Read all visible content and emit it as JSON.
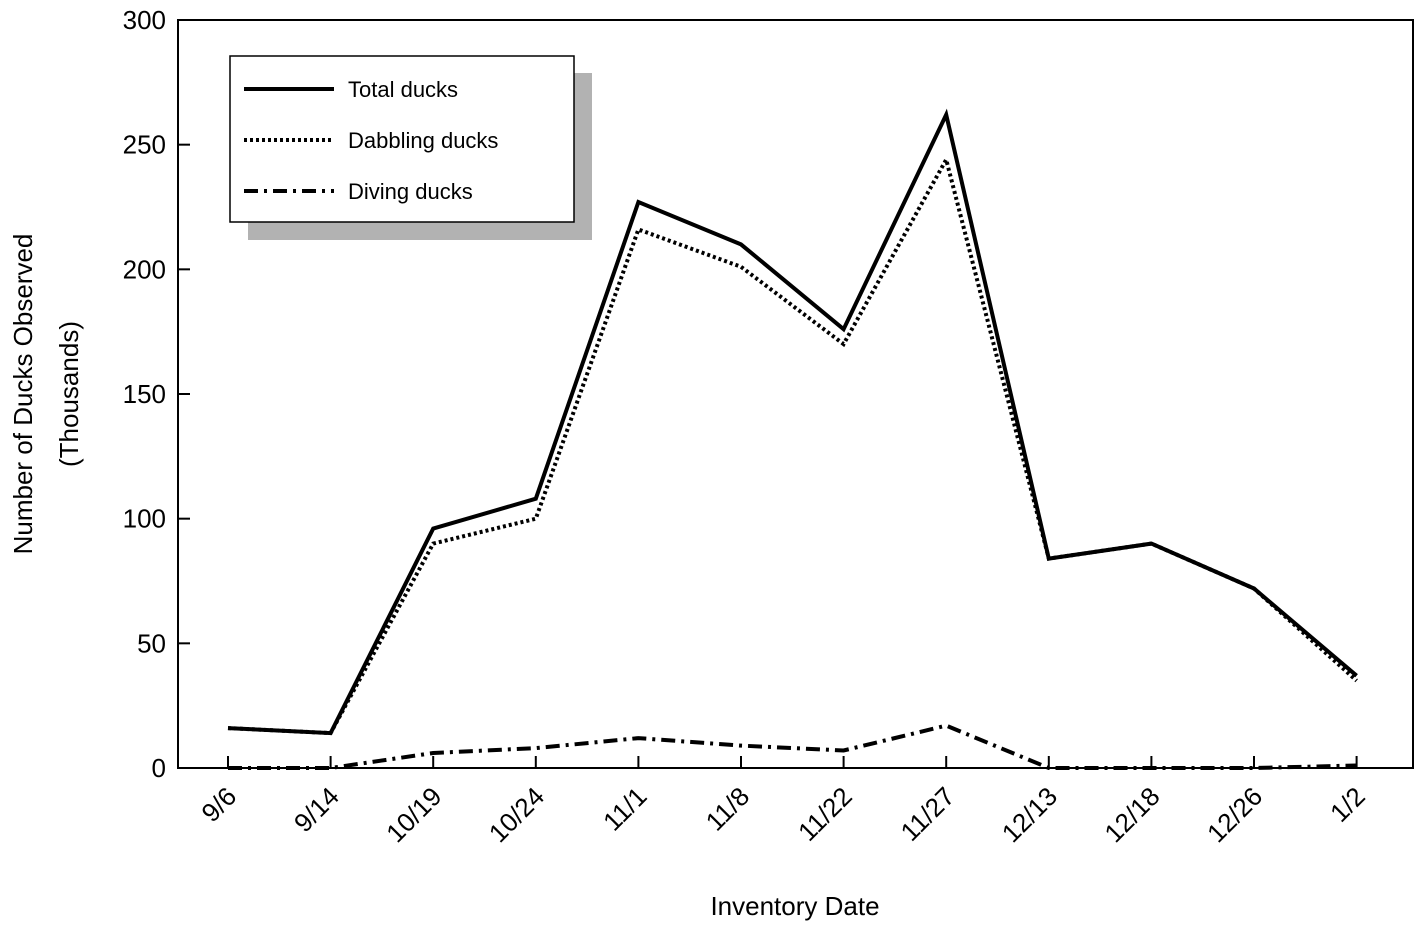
{
  "chart_data": {
    "type": "line",
    "title": "",
    "xlabel": "Inventory Date",
    "ylabel": "Number of Ducks Observed",
    "ylabel_sub": "(Thousands)",
    "categories": [
      "9/6",
      "9/14",
      "10/19",
      "10/24",
      "11/1",
      "11/8",
      "11/22",
      "11/27",
      "12/13",
      "12/18",
      "12/26",
      "1/2"
    ],
    "ylim": [
      0,
      300
    ],
    "yticks": [
      0,
      50,
      100,
      150,
      200,
      250,
      300
    ],
    "grid": false,
    "legend_position": "top-left",
    "series": [
      {
        "name": "Total ducks",
        "line_style": "solid",
        "color": "#000000",
        "values": [
          16,
          14,
          96,
          108,
          227,
          210,
          176,
          262,
          84,
          90,
          72,
          37
        ]
      },
      {
        "name": "Dabbling ducks",
        "line_style": "dotted",
        "color": "#000000",
        "values": [
          16,
          14,
          90,
          100,
          216,
          201,
          170,
          244,
          84,
          90,
          72,
          35
        ]
      },
      {
        "name": "Diving ducks",
        "line_style": "dash-dot",
        "color": "#000000",
        "values": [
          0,
          0,
          6,
          8,
          12,
          9,
          7,
          17,
          0,
          0,
          0,
          1
        ]
      }
    ]
  }
}
